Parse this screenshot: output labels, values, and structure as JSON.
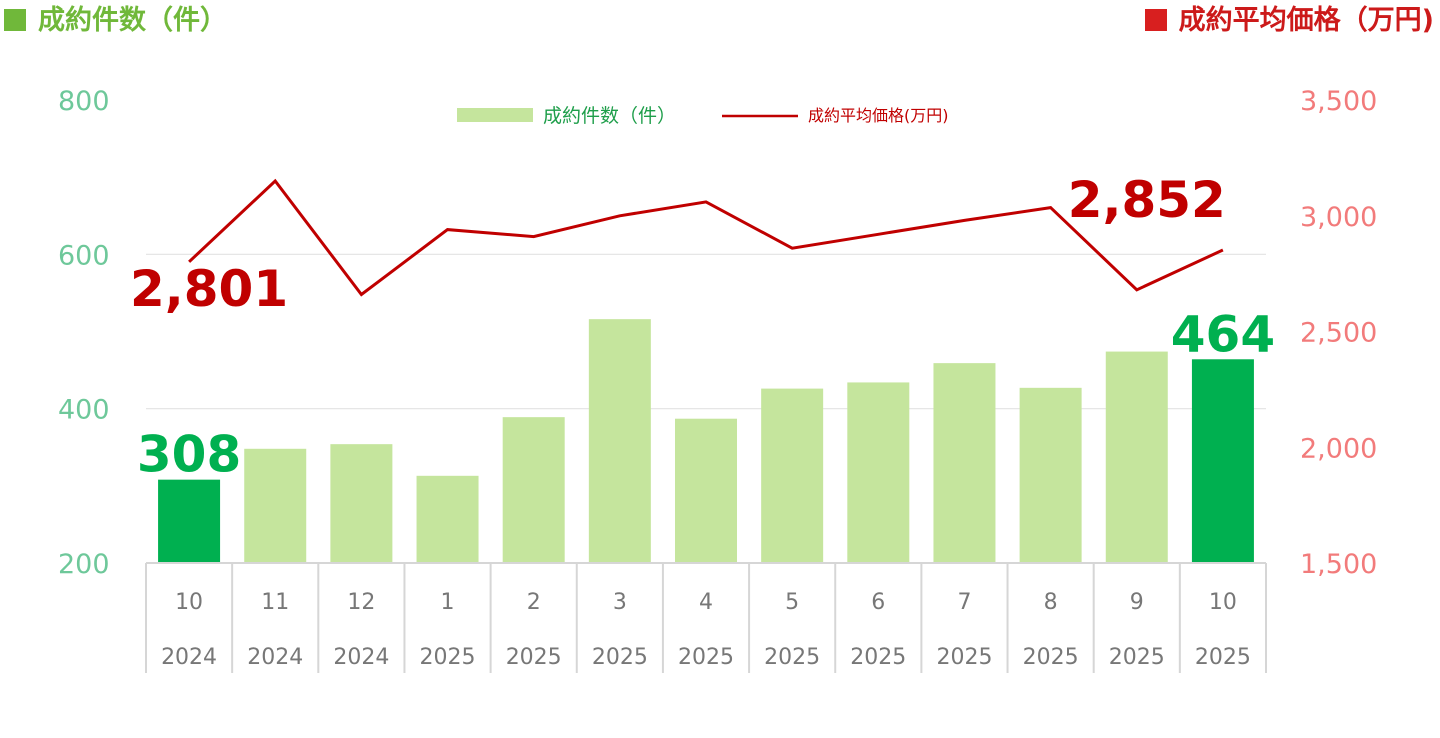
{
  "header": {
    "left_title": "成約件数（件）",
    "right_title": "成約平均価格（万円)"
  },
  "legend": {
    "bar_label": "成約件数（件）",
    "line_label": "成約平均価格(万円)"
  },
  "colors": {
    "bar": "#c5e59d",
    "bar_highlight": "#00b050",
    "line": "#c00000",
    "left_axis": "#6ec89a",
    "right_axis": "#f27b7b"
  },
  "chart_data": {
    "type": "bar",
    "categories": [
      {
        "month": "10",
        "year": "2024"
      },
      {
        "month": "11",
        "year": "2024"
      },
      {
        "month": "12",
        "year": "2024"
      },
      {
        "month": "1",
        "year": "2025"
      },
      {
        "month": "2",
        "year": "2025"
      },
      {
        "month": "3",
        "year": "2025"
      },
      {
        "month": "4",
        "year": "2025"
      },
      {
        "month": "5",
        "year": "2025"
      },
      {
        "month": "6",
        "year": "2025"
      },
      {
        "month": "7",
        "year": "2025"
      },
      {
        "month": "8",
        "year": "2025"
      },
      {
        "month": "9",
        "year": "2025"
      },
      {
        "month": "10",
        "year": "2025"
      }
    ],
    "series": [
      {
        "name": "成約件数（件）",
        "type": "bar",
        "axis": "left",
        "values": [
          308,
          348,
          354,
          313,
          389,
          516,
          387,
          426,
          434,
          459,
          427,
          474,
          464
        ]
      },
      {
        "name": "成約平均価格(万円)",
        "type": "line",
        "axis": "right",
        "values": [
          2801,
          3150,
          2660,
          2940,
          2910,
          3000,
          3060,
          2860,
          2920,
          2980,
          3035,
          2680,
          2852
        ]
      }
    ],
    "highlighted_bars": [
      0,
      12
    ],
    "y_left": {
      "min": 200,
      "max": 800,
      "ticks": [
        "200",
        "400",
        "600",
        "800"
      ]
    },
    "y_right": {
      "min": 1500,
      "max": 3500,
      "ticks": [
        "1,500",
        "2,000",
        "2,500",
        "3,000",
        "3,500"
      ]
    },
    "gridlines": [
      400,
      600
    ],
    "legend_position": "top-center",
    "callouts": {
      "bar_first": "308",
      "bar_last": "464",
      "line_first": "2,801",
      "line_last": "2,852"
    }
  }
}
